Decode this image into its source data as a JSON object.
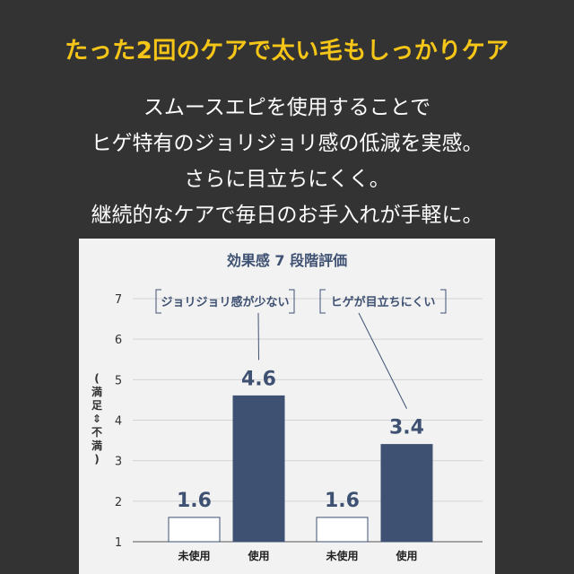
{
  "headline": "たった2回のケアで太い毛もしっかりケア",
  "body_lines": [
    "スムースエピを使用することで",
    "ヒゲ特有のジョリジョリ感の低減を実感。",
    "さらに目立ちにくく。",
    "継続的なケアで毎日のお手入れが手軽に。"
  ],
  "colors": {
    "background": "#333333",
    "headline": "#f5c518",
    "bar_used": "#3f5172",
    "bar_unused_fill": "#ffffff",
    "bar_unused_stroke": "#3f5172",
    "chart_bg": "#f2f2f2"
  },
  "chart_data": {
    "type": "bar",
    "title": "効果感 7 段階評価",
    "ylabel": "(満足⇕不満)",
    "ylim": [
      1,
      7
    ],
    "yticks": [
      "1",
      "2",
      "3",
      "4",
      "5",
      "6",
      "7"
    ],
    "groups": [
      {
        "annotation": "ジョリジョリ感が少ない",
        "bars": [
          {
            "category": "未使用",
            "value": 1.6,
            "label": "1.6",
            "style": "unused"
          },
          {
            "category": "使用",
            "value": 4.6,
            "label": "4.6",
            "style": "used"
          }
        ]
      },
      {
        "annotation": "ヒゲが目立ちにくい",
        "bars": [
          {
            "category": "未使用",
            "value": 1.6,
            "label": "1.6",
            "style": "unused"
          },
          {
            "category": "使用",
            "value": 3.4,
            "label": "3.4",
            "style": "used"
          }
        ]
      }
    ],
    "grid": true
  }
}
